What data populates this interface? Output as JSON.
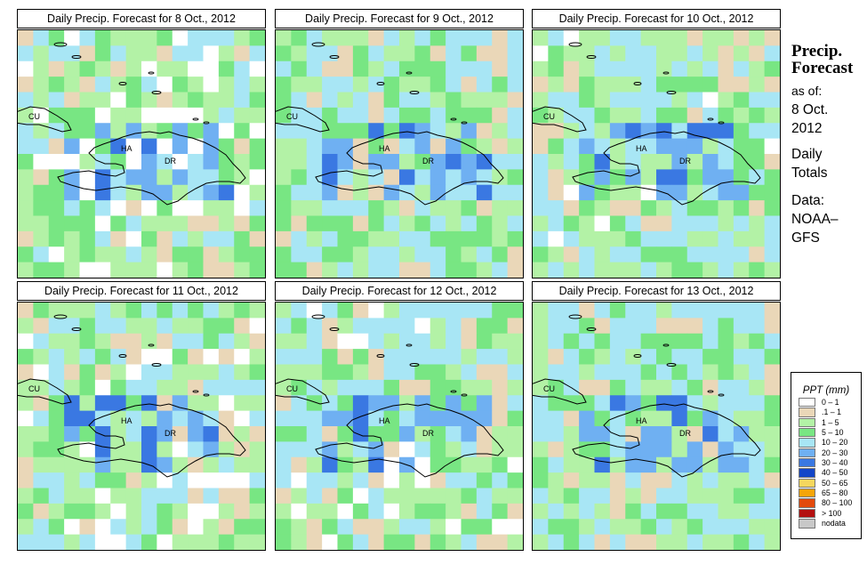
{
  "panels": [
    {
      "title": "Daily Precip. Forecast for  8 Oct., 2012",
      "seed": 11,
      "bias": 0.0,
      "blue_zone": 1
    },
    {
      "title": "Daily Precip. Forecast for  9 Oct., 2012",
      "seed": 23,
      "bias": 0.22,
      "blue_zone": 2
    },
    {
      "title": "Daily Precip. Forecast for  10 Oct., 2012",
      "seed": 37,
      "bias": 0.14,
      "blue_zone": 3
    },
    {
      "title": "Daily Precip. Forecast for  11 Oct., 2012",
      "seed": 51,
      "bias": 0.06,
      "blue_zone": 4
    },
    {
      "title": "Daily Precip. Forecast for  12 Oct., 2012",
      "seed": 67,
      "bias": 0.12,
      "blue_zone": 5
    },
    {
      "title": "Daily Precip. Forecast for  13 Oct., 2012",
      "seed": 83,
      "bias": 0.2,
      "blue_zone": 6
    }
  ],
  "map_labels": {
    "cu": "CU",
    "ha": "HA",
    "dr": "DR"
  },
  "info": {
    "heading_line1": "Precip.",
    "heading_line2": "Forecast",
    "as_of": "as of:",
    "date_line1": "8 Oct.",
    "date_line2": "2012",
    "totals_line1": "Daily",
    "totals_line2": "Totals",
    "data_line1": "Data:",
    "data_line2": "NOAA–",
    "data_line3": "GFS"
  },
  "legend": {
    "title": "PPT (mm)",
    "items": [
      {
        "label": "0 – 1",
        "color": "#ffffff"
      },
      {
        "label": ".1 – 1",
        "color": "#ead7b8"
      },
      {
        "label": "1 – 5",
        "color": "#b3f2a6"
      },
      {
        "label": "5 – 10",
        "color": "#78e683"
      },
      {
        "label": "10 – 20",
        "color": "#a8e6f5"
      },
      {
        "label": "20 – 30",
        "color": "#6fb0f2"
      },
      {
        "label": "30 – 40",
        "color": "#3a78e2"
      },
      {
        "label": "40 – 50",
        "color": "#1245c8"
      },
      {
        "label": "50 – 65",
        "color": "#f5d75e"
      },
      {
        "label": "65 – 80",
        "color": "#f5a50a"
      },
      {
        "label": "80 – 100",
        "color": "#e34a0c"
      },
      {
        "label": "> 100",
        "color": "#b31010"
      },
      {
        "label": "nodata",
        "color": "#c8c8c8"
      }
    ]
  }
}
